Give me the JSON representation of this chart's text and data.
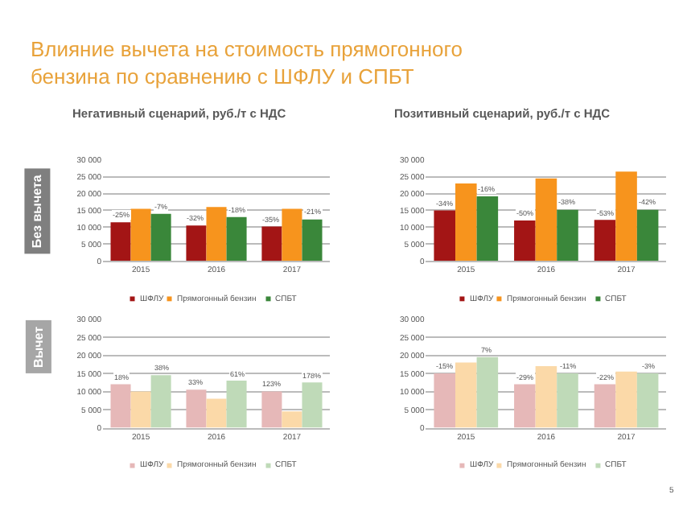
{
  "chart_data": [
    {
      "type": "bar",
      "title": "Негативный сценарий, руб./т с НДС",
      "ylabel": "Без вычета",
      "categories": [
        "2015",
        "2016",
        "2017"
      ],
      "ylim": [
        0,
        30000
      ],
      "yticks": [
        {
          "value": 0,
          "label": "0"
        },
        {
          "value": 5000,
          "label": "5 000"
        },
        {
          "value": 10000,
          "label": "10 000"
        },
        {
          "value": 15000,
          "label": "15 000"
        },
        {
          "value": 20000,
          "label": "20 000"
        },
        {
          "value": 25000,
          "label": "25 000"
        },
        {
          "value": 30000,
          "label": "30 000"
        }
      ],
      "grid": "y",
      "legend": "bottom",
      "annotations": [
        "Влияние вычета на стоимость прямогонного бензина по сравнению с ШФЛУ и СПБТ",
        "-25%",
        "-32%",
        "-35%",
        "-7%",
        "-18%",
        "-21%"
      ],
      "series": [
        {
          "name": "ШФЛУ",
          "color": "#a31515",
          "values": [
            11500,
            10500,
            10200
          ]
        },
        {
          "name": "Прямогонный бензин",
          "color": "#f7941d",
          "values": [
            15500,
            16000,
            15500
          ]
        },
        {
          "name": "СПБТ",
          "color": "#3a873a",
          "values": [
            14000,
            13000,
            12300
          ]
        }
      ]
    },
    {
      "type": "bar",
      "title": "Позитивный сценарий, руб./т с НДС",
      "categories": [
        "2015",
        "2016",
        "2017"
      ],
      "ylim": [
        0,
        30000
      ],
      "yticks": [
        {
          "value": 0,
          "label": "0"
        },
        {
          "value": 5000,
          "label": "5 000"
        },
        {
          "value": 10000,
          "label": "10 000"
        },
        {
          "value": 15000,
          "label": "15 000"
        },
        {
          "value": 20000,
          "label": "20 000"
        },
        {
          "value": 25000,
          "label": "25 000"
        },
        {
          "value": 30000,
          "label": "30 000"
        }
      ],
      "grid": "y",
      "legend": "bottom",
      "annotations": [
        "5",
        "-34%",
        "-50%",
        "-53%",
        "-16%",
        "-38%",
        "-42%"
      ],
      "series": [
        {
          "name": "ШФЛУ",
          "color": "#a31515",
          "values": [
            15000,
            12000,
            12200
          ]
        },
        {
          "name": "Прямогонный бензин",
          "color": "#f7941d",
          "values": [
            23000,
            24500,
            26500
          ]
        },
        {
          "name": "СПБТ",
          "color": "#3a873a",
          "values": [
            19200,
            15200,
            15200
          ]
        }
      ]
    },
    {
      "type": "bar",
      "ylabel": "Вычет",
      "categories": [
        "2015",
        "2016",
        "2017"
      ],
      "ylim": [
        0,
        30000
      ],
      "yticks": [
        {
          "value": 0,
          "label": "0"
        },
        {
          "value": 5000,
          "label": "5 000"
        },
        {
          "value": 10000,
          "label": "10 000"
        },
        {
          "value": 15000,
          "label": "15 000"
        },
        {
          "value": 20000,
          "label": "20 000"
        },
        {
          "value": 25000,
          "label": "25 000"
        },
        {
          "value": 30000,
          "label": "30 000"
        }
      ],
      "grid": "y",
      "legend": "bottom",
      "annotations": [
        "18%",
        "33%",
        "123%",
        "38%",
        "61%",
        "178%"
      ],
      "series": [
        {
          "name": "ШФЛУ",
          "color": "#e6b8b8",
          "values": [
            12000,
            10500,
            10000
          ]
        },
        {
          "name": "Прямогонный бензин",
          "color": "#fbd9a8",
          "values": [
            10000,
            8000,
            4500
          ]
        },
        {
          "name": "СПБТ",
          "color": "#bfdab8",
          "values": [
            14500,
            13000,
            12500
          ]
        }
      ]
    },
    {
      "type": "bar",
      "categories": [
        "2015",
        "2016",
        "2017"
      ],
      "ylim": [
        0,
        30000
      ],
      "yticks": [
        {
          "value": 0,
          "label": "0"
        },
        {
          "value": 5000,
          "label": "5 000"
        },
        {
          "value": 10000,
          "label": "10 000"
        },
        {
          "value": 15000,
          "label": "15 000"
        },
        {
          "value": 20000,
          "label": "20 000"
        },
        {
          "value": 25000,
          "label": "25 000"
        },
        {
          "value": 30000,
          "label": "30 000"
        }
      ],
      "grid": "y",
      "legend": "bottom",
      "annotations": [
        "-15%",
        "-29%",
        "-22%",
        "7%",
        "-11%",
        "-3%"
      ],
      "series": [
        {
          "name": "ШФЛУ",
          "color": "#e6b8b8",
          "values": [
            15000,
            12000,
            12000
          ]
        },
        {
          "name": "Прямогонный бензин",
          "color": "#fbd9a8",
          "values": [
            18000,
            17000,
            15500
          ]
        },
        {
          "name": "СПБТ",
          "color": "#bfdab8",
          "values": [
            19500,
            15000,
            15000
          ]
        }
      ]
    }
  ]
}
